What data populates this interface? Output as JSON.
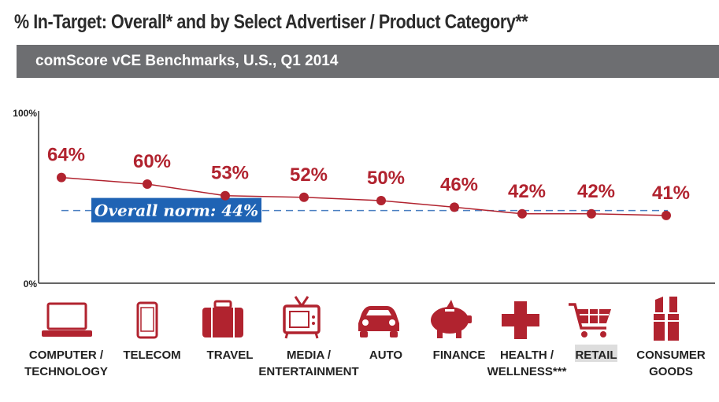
{
  "title": "% In-Target: Overall* and by Select Advertiser / Product Category**",
  "banner": "comScore vCE Benchmarks, U.S., Q1 2014",
  "chart_data": {
    "type": "line",
    "categories": [
      "COMPUTER / TECHNOLOGY",
      "TELECOM",
      "TRAVEL",
      "MEDIA / ENTERTAINMENT",
      "AUTO",
      "FINANCE",
      "HEALTH / WELLNESS***",
      "RETAIL",
      "CONSUMER GOODS"
    ],
    "category_lines": [
      [
        "COMPUTER /",
        "TECHNOLOGY"
      ],
      [
        "TELECOM"
      ],
      [
        "TRAVEL"
      ],
      [
        "MEDIA /",
        "ENTERTAINMENT"
      ],
      [
        "AUTO"
      ],
      [
        "FINANCE"
      ],
      [
        "HEALTH /",
        "WELLNESS***"
      ],
      [
        "RETAIL"
      ],
      [
        "CONSUMER",
        "GOODS"
      ]
    ],
    "values": [
      64,
      60,
      53,
      52,
      50,
      46,
      42,
      42,
      41
    ],
    "value_labels": [
      "64%",
      "60%",
      "53%",
      "52%",
      "50%",
      "46%",
      "42%",
      "42%",
      "41%"
    ],
    "ylim": [
      0,
      100
    ],
    "ytick_labels": [
      "100%",
      "0%"
    ],
    "norm": {
      "value": 44,
      "label": "Overall norm: 44%"
    },
    "highlighted_category": "RETAIL",
    "colors": {
      "line": "#b1232f",
      "norm_line": "#4a7fc1",
      "norm_box": "#1f63b4",
      "icon": "#b1232f",
      "highlight": "#dddddd"
    },
    "icons": [
      "laptop-icon",
      "phone-icon",
      "suitcase-icon",
      "tv-icon",
      "car-icon",
      "piggy-bank-icon",
      "medical-cross-icon",
      "shopping-cart-icon",
      "lipstick-icon"
    ]
  }
}
